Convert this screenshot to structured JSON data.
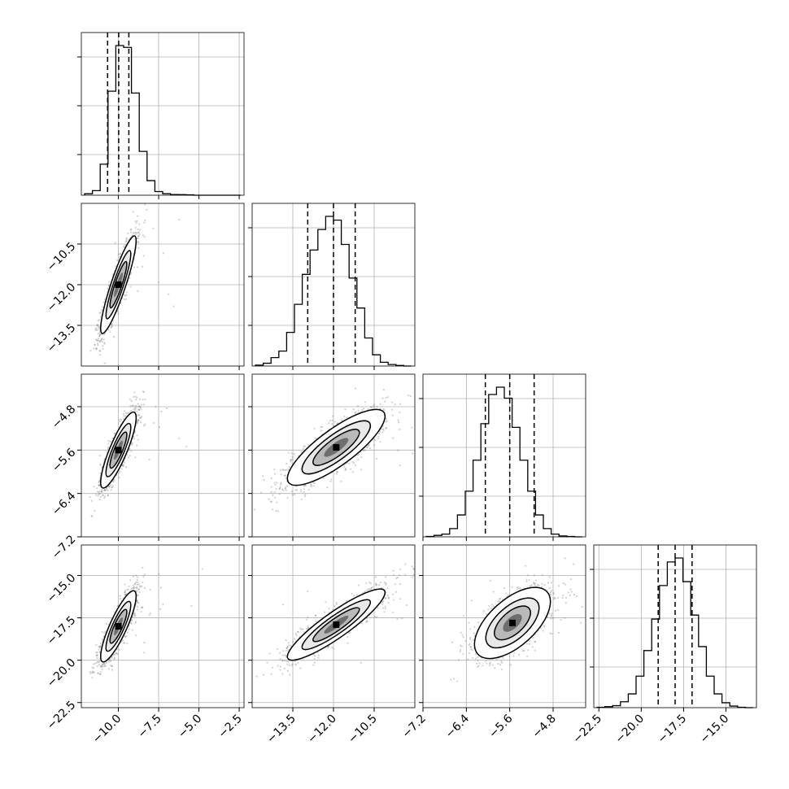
{
  "chart_data": {
    "type": "corner",
    "grid": true,
    "parameters": [
      {
        "ticks": [
          -10.0,
          -7.5,
          -5.0,
          -2.5
        ],
        "tick_labels": [
          "−10.0",
          "−7.5",
          "−5.0",
          "−2.5"
        ],
        "range": [
          -12.3,
          -2.2
        ]
      },
      {
        "ticks": [
          -13.5,
          -12.0,
          -10.5
        ],
        "tick_labels": [
          "−13.5",
          "−12.0",
          "−10.5"
        ],
        "range": [
          -15.0,
          -9.0
        ]
      },
      {
        "ticks": [
          -7.2,
          -6.4,
          -5.6,
          -4.8
        ],
        "tick_labels": [
          "−7.2",
          "−6.4",
          "−5.6",
          "−4.8"
        ],
        "range": [
          -7.2,
          -4.2
        ]
      },
      {
        "ticks": [
          -22.5,
          -20.0,
          -17.5,
          -15.0
        ],
        "tick_labels": [
          "−22.5",
          "−20.0",
          "−17.5",
          "−15.0"
        ],
        "range": [
          -22.8,
          -13.2
        ]
      }
    ],
    "histograms": [
      {
        "param": 0,
        "bins": 20,
        "counts": [
          8,
          25,
          170,
          570,
          820,
          810,
          560,
          240,
          80,
          20,
          8,
          4,
          3,
          2,
          0,
          0,
          0,
          0,
          0,
          0
        ],
        "quantiles": [
          -10.67,
          -9.98,
          -9.35
        ]
      },
      {
        "param": 1,
        "bins": 20,
        "counts": [
          5,
          15,
          45,
          80,
          180,
          330,
          490,
          620,
          730,
          800,
          780,
          650,
          470,
          310,
          150,
          60,
          20,
          8,
          3,
          0
        ],
        "quantiles": [
          -12.95,
          -12.0,
          -11.2
        ]
      },
      {
        "param": 2,
        "bins": 20,
        "counts": [
          2,
          8,
          15,
          45,
          120,
          250,
          420,
          620,
          780,
          820,
          760,
          600,
          420,
          250,
          120,
          45,
          15,
          5,
          2,
          0
        ],
        "quantiles": [
          -6.05,
          -5.6,
          -5.15
        ]
      },
      {
        "param": 3,
        "bins": 20,
        "counts": [
          2,
          5,
          10,
          30,
          70,
          160,
          290,
          450,
          620,
          740,
          760,
          640,
          470,
          310,
          160,
          70,
          25,
          8,
          2,
          0
        ],
        "quantiles": [
          -19.0,
          -18.0,
          -17.0
        ]
      }
    ],
    "pairs": [
      {
        "x_param": 0,
        "y_param": 1,
        "mean": [
          -10.0,
          -12.0
        ],
        "sd": [
          0.55,
          0.9
        ],
        "corr": 0.9
      },
      {
        "x_param": 0,
        "y_param": 2,
        "mean": [
          -10.0,
          -5.6
        ],
        "sd": [
          0.55,
          0.35
        ],
        "corr": 0.85
      },
      {
        "x_param": 1,
        "y_param": 2,
        "mean": [
          -11.9,
          -5.55
        ],
        "sd": [
          0.9,
          0.35
        ],
        "corr": 0.82
      },
      {
        "x_param": 0,
        "y_param": 3,
        "mean": [
          -10.0,
          -18.0
        ],
        "sd": [
          0.55,
          1.05
        ],
        "corr": 0.85
      },
      {
        "x_param": 1,
        "y_param": 3,
        "mean": [
          -11.9,
          -17.9
        ],
        "sd": [
          0.9,
          1.05
        ],
        "corr": 0.9
      },
      {
        "x_param": 2,
        "y_param": 3,
        "mean": [
          -5.55,
          -17.8
        ],
        "sd": [
          0.35,
          1.05
        ],
        "corr": 0.6
      }
    ]
  }
}
